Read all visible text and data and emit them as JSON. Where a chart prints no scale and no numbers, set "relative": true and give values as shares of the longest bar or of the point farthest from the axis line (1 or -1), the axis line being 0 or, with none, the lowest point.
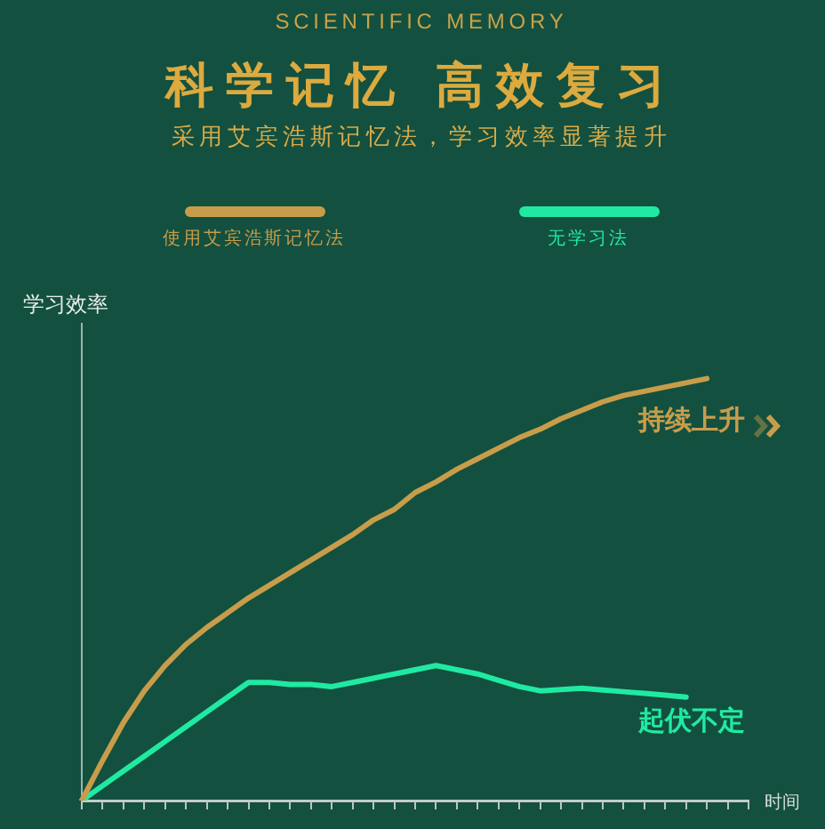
{
  "chart_data": {
    "type": "line",
    "title": "科学记忆 高效复习",
    "subtitle": "采用艾宾浩斯记忆法，学习效率显著提升",
    "annotations": [
      "SCIENTIFIC MEMORY",
      "持续上升",
      "起伏不定"
    ],
    "xlabel": "时间",
    "ylabel": "学习效率",
    "categories": [
      null,
      null,
      null,
      null,
      null,
      null,
      null,
      null,
      null,
      null,
      null,
      null,
      null,
      null,
      null,
      null,
      null,
      null,
      null,
      null,
      null,
      null,
      null,
      null,
      null,
      null,
      null,
      null,
      null,
      null,
      null,
      null,
      null
    ],
    "series": [
      {
        "name": "使用艾宾浩斯记忆法",
        "color": "#c79d4b",
        "values": [
          0,
          0.095,
          0.185,
          0.26,
          0.32,
          0.37,
          0.41,
          0.445,
          0.48,
          0.51,
          0.54,
          0.57,
          0.6,
          0.63,
          0.665,
          0.69,
          0.73,
          0.755,
          0.785,
          0.81,
          0.835,
          0.86,
          0.88,
          0.905,
          0.925,
          0.945,
          0.96,
          0.97,
          0.98,
          0.99,
          1,
          null,
          null
        ]
      },
      {
        "name": "无学习法",
        "color": "#20eaa2",
        "values": [
          0,
          0.035,
          0.07,
          0.105,
          0.14,
          0.175,
          0.21,
          0.245,
          0.28,
          0.28,
          0.275,
          0.275,
          0.27,
          0.28,
          0.29,
          0.3,
          0.31,
          0.32,
          0.31,
          0.3,
          0.285,
          0.27,
          0.26,
          0.263,
          0.266,
          0.262,
          0.258,
          0.254,
          0.25,
          0.245,
          null,
          null,
          null
        ]
      }
    ],
    "relative": true,
    "legend": "top",
    "marker": "none",
    "line_style": "solid"
  }
}
